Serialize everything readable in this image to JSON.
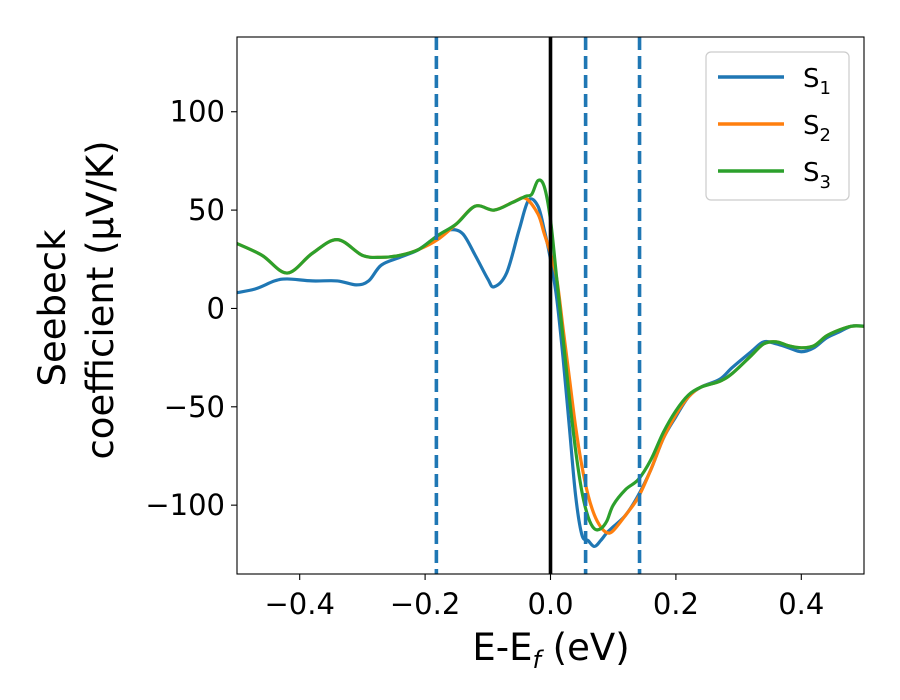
{
  "chart_data": {
    "type": "line",
    "xlabel": {
      "main": "E-E",
      "sub": "f",
      "unit": " (eV)"
    },
    "ylabel": {
      "line1": "Seebeck",
      "line2": "coefficient  (μV/K)"
    },
    "xlim": [
      -0.5,
      0.5
    ],
    "ylim": [
      -135,
      138
    ],
    "x_ticks": [
      -0.4,
      -0.2,
      0.0,
      0.2,
      0.4
    ],
    "x_tick_labels": [
      "−0.4",
      "−0.2",
      "0.0",
      "0.2",
      "0.4"
    ],
    "y_ticks": [
      100,
      50,
      0,
      -50,
      -100
    ],
    "y_tick_labels": [
      "100",
      "50",
      "0",
      "−50",
      "−100"
    ],
    "grid": false,
    "legend": "top-right",
    "vertical_lines": [
      {
        "x": -0.182,
        "style": "dashed",
        "color": "#1f77b4"
      },
      {
        "x": 0.0,
        "style": "solid",
        "color": "#000000"
      },
      {
        "x": 0.056,
        "style": "dashed",
        "color": "#1f77b4"
      },
      {
        "x": 0.142,
        "style": "dashed",
        "color": "#1f77b4"
      }
    ],
    "series": [
      {
        "name": "S",
        "sub": "1",
        "color": "#1f77b4",
        "x": [
          -0.5,
          -0.47,
          -0.44,
          -0.42,
          -0.38,
          -0.34,
          -0.31,
          -0.29,
          -0.27,
          -0.24,
          -0.21,
          -0.18,
          -0.16,
          -0.14,
          -0.12,
          -0.1,
          -0.09,
          -0.07,
          -0.05,
          -0.035,
          -0.02,
          -0.01,
          0.0,
          0.01,
          0.02,
          0.03,
          0.04,
          0.05,
          0.06,
          0.07,
          0.08,
          0.09,
          0.1,
          0.12,
          0.14,
          0.16,
          0.18,
          0.2,
          0.22,
          0.24,
          0.27,
          0.29,
          0.32,
          0.34,
          0.36,
          0.38,
          0.4,
          0.42,
          0.44,
          0.46,
          0.48,
          0.5
        ],
        "y": [
          8,
          10,
          14,
          15,
          14,
          14,
          12,
          14,
          22,
          26,
          30,
          37,
          40,
          38,
          27,
          15,
          11,
          18,
          40,
          55,
          52,
          40,
          25,
          5,
          -25,
          -60,
          -95,
          -115,
          -118,
          -121,
          -118,
          -114,
          -111,
          -105,
          -95,
          -82,
          -66,
          -55,
          -45,
          -40,
          -36,
          -30,
          -22,
          -17,
          -18,
          -20,
          -22,
          -20,
          -15,
          -12,
          -9,
          -9
        ]
      },
      {
        "name": "S",
        "sub": "2",
        "color": "#ff7f0e",
        "x": [
          -0.5,
          -0.46,
          -0.42,
          -0.38,
          -0.34,
          -0.3,
          -0.27,
          -0.24,
          -0.21,
          -0.18,
          -0.15,
          -0.12,
          -0.09,
          -0.06,
          -0.04,
          -0.02,
          -0.01,
          0.0,
          0.01,
          0.02,
          0.03,
          0.04,
          0.05,
          0.06,
          0.07,
          0.08,
          0.09,
          0.1,
          0.12,
          0.14,
          0.16,
          0.18,
          0.2,
          0.22,
          0.24,
          0.27,
          0.29,
          0.32,
          0.34,
          0.36,
          0.38,
          0.4,
          0.42,
          0.44,
          0.46,
          0.48,
          0.5
        ],
        "y": [
          33,
          27,
          18,
          28,
          35,
          27,
          26,
          27,
          30,
          35,
          43,
          52,
          50,
          54,
          56,
          48,
          38,
          28,
          15,
          -10,
          -35,
          -60,
          -80,
          -95,
          -105,
          -111,
          -114,
          -113,
          -105,
          -96,
          -82,
          -66,
          -54,
          -45,
          -40,
          -37,
          -33,
          -24,
          -18,
          -17,
          -19,
          -20,
          -19,
          -14,
          -11,
          -9,
          -9
        ]
      },
      {
        "name": "S",
        "sub": "3",
        "color": "#2ca02c",
        "x": [
          -0.5,
          -0.46,
          -0.42,
          -0.38,
          -0.34,
          -0.3,
          -0.27,
          -0.24,
          -0.21,
          -0.18,
          -0.15,
          -0.12,
          -0.09,
          -0.06,
          -0.04,
          -0.03,
          -0.02,
          -0.01,
          0.0,
          0.01,
          0.02,
          0.03,
          0.04,
          0.05,
          0.06,
          0.07,
          0.08,
          0.09,
          0.1,
          0.12,
          0.14,
          0.16,
          0.18,
          0.2,
          0.22,
          0.24,
          0.27,
          0.29,
          0.32,
          0.34,
          0.36,
          0.38,
          0.4,
          0.42,
          0.44,
          0.46,
          0.48,
          0.5
        ],
        "y": [
          33,
          27,
          18,
          28,
          35,
          27,
          26,
          27,
          30,
          37,
          43,
          52,
          50,
          54,
          57,
          58,
          65,
          62,
          45,
          15,
          -15,
          -45,
          -72,
          -93,
          -106,
          -112,
          -112,
          -108,
          -100,
          -92,
          -87,
          -77,
          -63,
          -52,
          -44,
          -40,
          -37,
          -33,
          -24,
          -18,
          -17,
          -19,
          -20,
          -19,
          -14,
          -11,
          -9,
          -9
        ]
      }
    ]
  }
}
